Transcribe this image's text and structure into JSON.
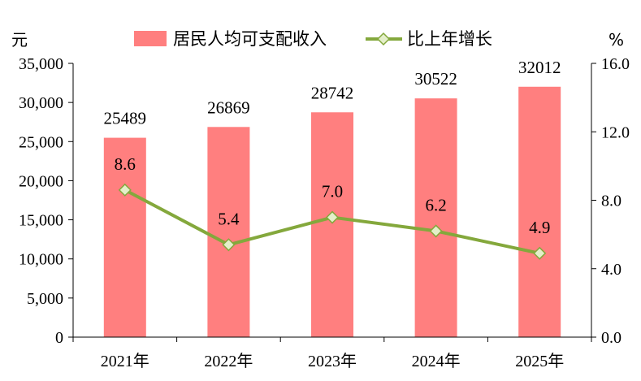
{
  "units": {
    "left": "元",
    "right": "%"
  },
  "legend": {
    "bar_label": "居民人均可支配收入",
    "line_label": "比上年增长"
  },
  "colors": {
    "bar": "#ff7f7f",
    "line": "#84a83c",
    "marker_fill": "#e4efc9",
    "axis": "#000000"
  },
  "chart_data": {
    "type": "bar",
    "categories": [
      "2021年",
      "2022年",
      "2023年",
      "2024年",
      "2025年"
    ],
    "series": [
      {
        "name": "居民人均可支配收入",
        "type": "bar",
        "axis": "left",
        "values": [
          25489,
          26869,
          28742,
          30522,
          32012
        ],
        "labels": [
          "25489",
          "26869",
          "28742",
          "30522",
          "32012"
        ]
      },
      {
        "name": "比上年增长",
        "type": "line",
        "axis": "right",
        "values": [
          8.6,
          5.4,
          7.0,
          6.2,
          4.9
        ],
        "labels": [
          "8.6",
          "5.4",
          "7.0",
          "6.2",
          "4.9"
        ]
      }
    ],
    "y_left": {
      "range": [
        0,
        35000
      ],
      "ticks": [
        0,
        5000,
        10000,
        15000,
        20000,
        25000,
        30000,
        35000
      ],
      "tick_labels": [
        "0",
        "5,000",
        "10,000",
        "15,000",
        "20,000",
        "25,000",
        "30,000",
        "35,000"
      ]
    },
    "y_right": {
      "range": [
        0,
        16
      ],
      "ticks": [
        0,
        4,
        8,
        12,
        16
      ],
      "tick_labels": [
        "0.0",
        "4.0",
        "8.0",
        "12.0",
        "16.0"
      ]
    },
    "grid": false,
    "legend_position": "top"
  }
}
